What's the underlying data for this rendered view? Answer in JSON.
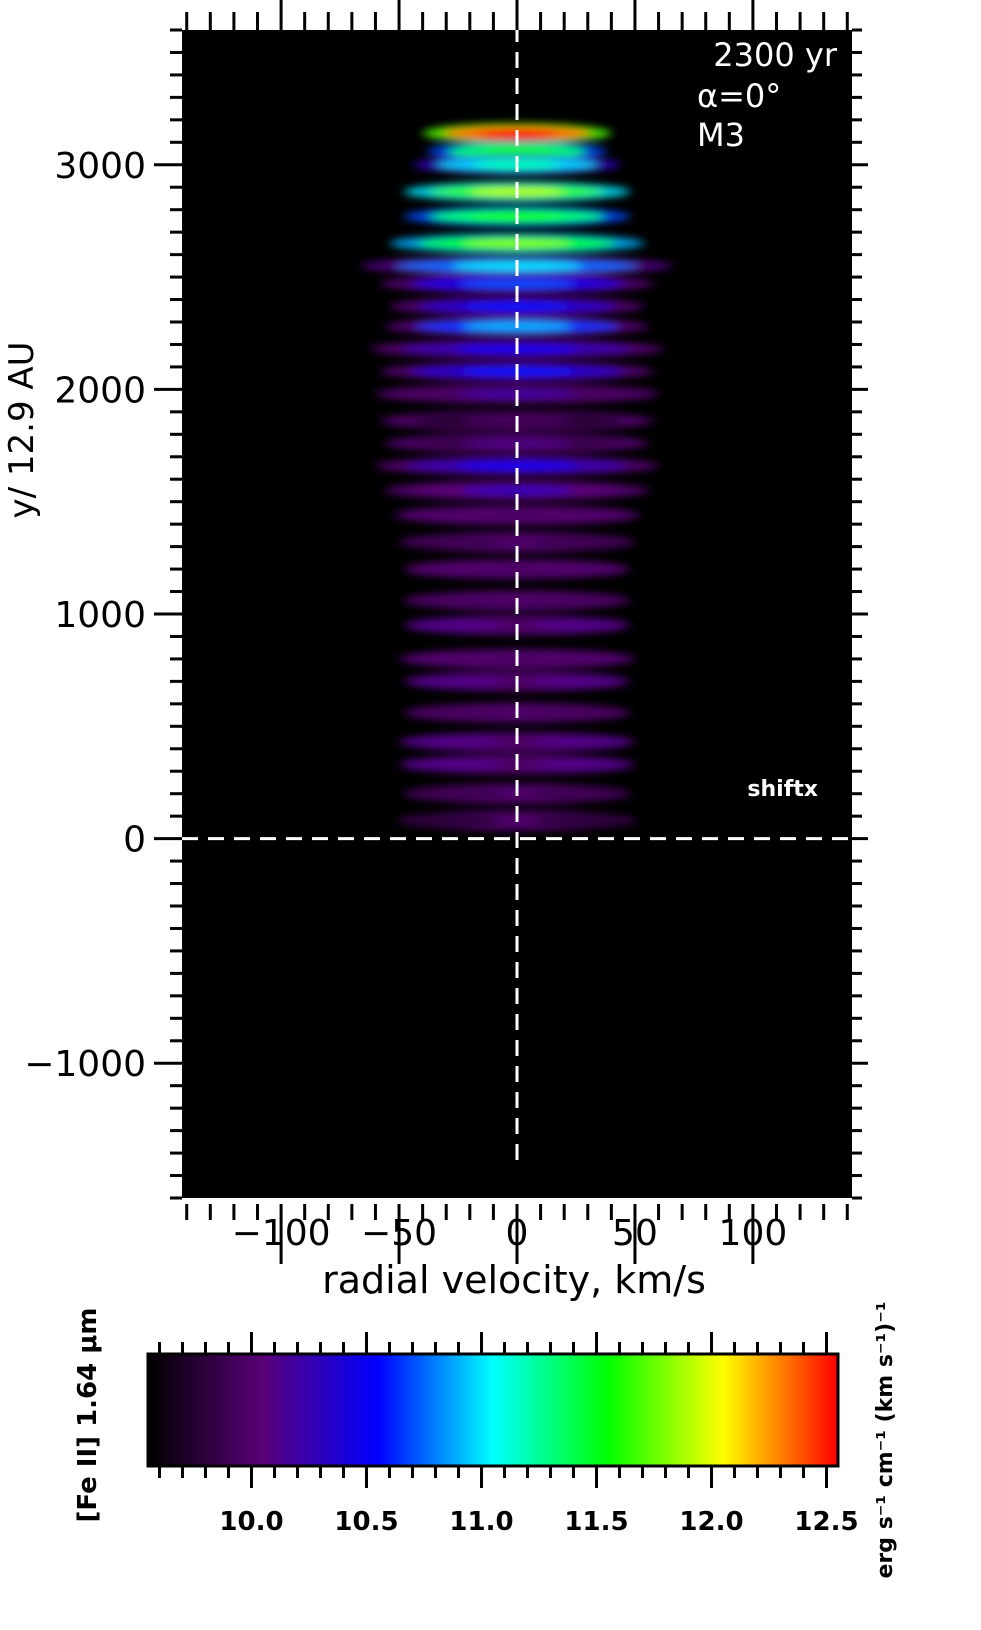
{
  "chart_data": {
    "type": "heatmap",
    "title": "",
    "annotations": {
      "time": "2300 yr",
      "angle": "α=0°",
      "model": "M3",
      "shift_label": "shiftx"
    },
    "xlabel": "radial velocity, km/s",
    "ylabel": "y/ 12.9 AU",
    "xlim": [
      -142,
      142
    ],
    "ylim": [
      -1600,
      3600
    ],
    "x_ticks": [
      -100,
      -50,
      0,
      50,
      100
    ],
    "x_tick_labels": [
      "−100",
      "−50",
      "0",
      "50",
      "100"
    ],
    "y_ticks": [
      -1000,
      0,
      1000,
      2000,
      3000
    ],
    "y_tick_labels": [
      "−1000",
      "0",
      "1000",
      "2000",
      "3000"
    ],
    "reference_lines": {
      "x": 0,
      "y": 0,
      "style": "dashed",
      "color": "#ffffff"
    },
    "background": "#000000",
    "emission_bands": [
      {
        "y": 3140,
        "half_width": 40,
        "level": 12.6
      },
      {
        "y": 3060,
        "half_width": 38,
        "level": 11.6
      },
      {
        "y": 3000,
        "half_width": 44,
        "level": 11.2
      },
      {
        "y": 2880,
        "half_width": 48,
        "level": 11.9
      },
      {
        "y": 2770,
        "half_width": 48,
        "level": 11.6
      },
      {
        "y": 2650,
        "half_width": 54,
        "level": 11.8
      },
      {
        "y": 2550,
        "half_width": 66,
        "level": 11.0
      },
      {
        "y": 2470,
        "half_width": 58,
        "level": 10.7
      },
      {
        "y": 2370,
        "half_width": 54,
        "level": 10.6
      },
      {
        "y": 2280,
        "half_width": 56,
        "level": 10.9
      },
      {
        "y": 2180,
        "half_width": 62,
        "level": 10.5
      },
      {
        "y": 2080,
        "half_width": 58,
        "level": 10.6
      },
      {
        "y": 1980,
        "half_width": 60,
        "level": 10.2
      },
      {
        "y": 1860,
        "half_width": 58,
        "level": 9.95
      },
      {
        "y": 1760,
        "half_width": 56,
        "level": 10.1
      },
      {
        "y": 1660,
        "half_width": 60,
        "level": 10.5
      },
      {
        "y": 1550,
        "half_width": 56,
        "level": 10.3
      },
      {
        "y": 1440,
        "half_width": 52,
        "level": 10.0
      },
      {
        "y": 1320,
        "half_width": 50,
        "level": 9.9
      },
      {
        "y": 1200,
        "half_width": 48,
        "level": 10.0
      },
      {
        "y": 1060,
        "half_width": 48,
        "level": 9.95
      },
      {
        "y": 950,
        "half_width": 48,
        "level": 10.1
      },
      {
        "y": 800,
        "half_width": 50,
        "level": 10.0
      },
      {
        "y": 700,
        "half_width": 48,
        "level": 10.1
      },
      {
        "y": 560,
        "half_width": 48,
        "level": 9.95
      },
      {
        "y": 430,
        "half_width": 50,
        "level": 10.1
      },
      {
        "y": 330,
        "half_width": 50,
        "level": 10.1
      },
      {
        "y": 200,
        "half_width": 48,
        "level": 9.9
      },
      {
        "y": 80,
        "half_width": 50,
        "level": 9.8
      }
    ],
    "colorbar": {
      "label": "[Fe II] 1.64 μm",
      "units": "erg s⁻¹ cm⁻¹ (km s⁻¹)⁻¹",
      "range": [
        9.55,
        12.55
      ],
      "ticks": [
        10.0,
        10.5,
        11.0,
        11.5,
        12.0,
        12.5
      ],
      "tick_labels": [
        "10.0",
        "10.5",
        "11.0",
        "11.5",
        "12.0",
        "12.5"
      ],
      "colormap": [
        "#000000",
        "#5a0078",
        "#0000ff",
        "#00ffff",
        "#00ff00",
        "#ffff00",
        "#ff0000"
      ]
    }
  }
}
